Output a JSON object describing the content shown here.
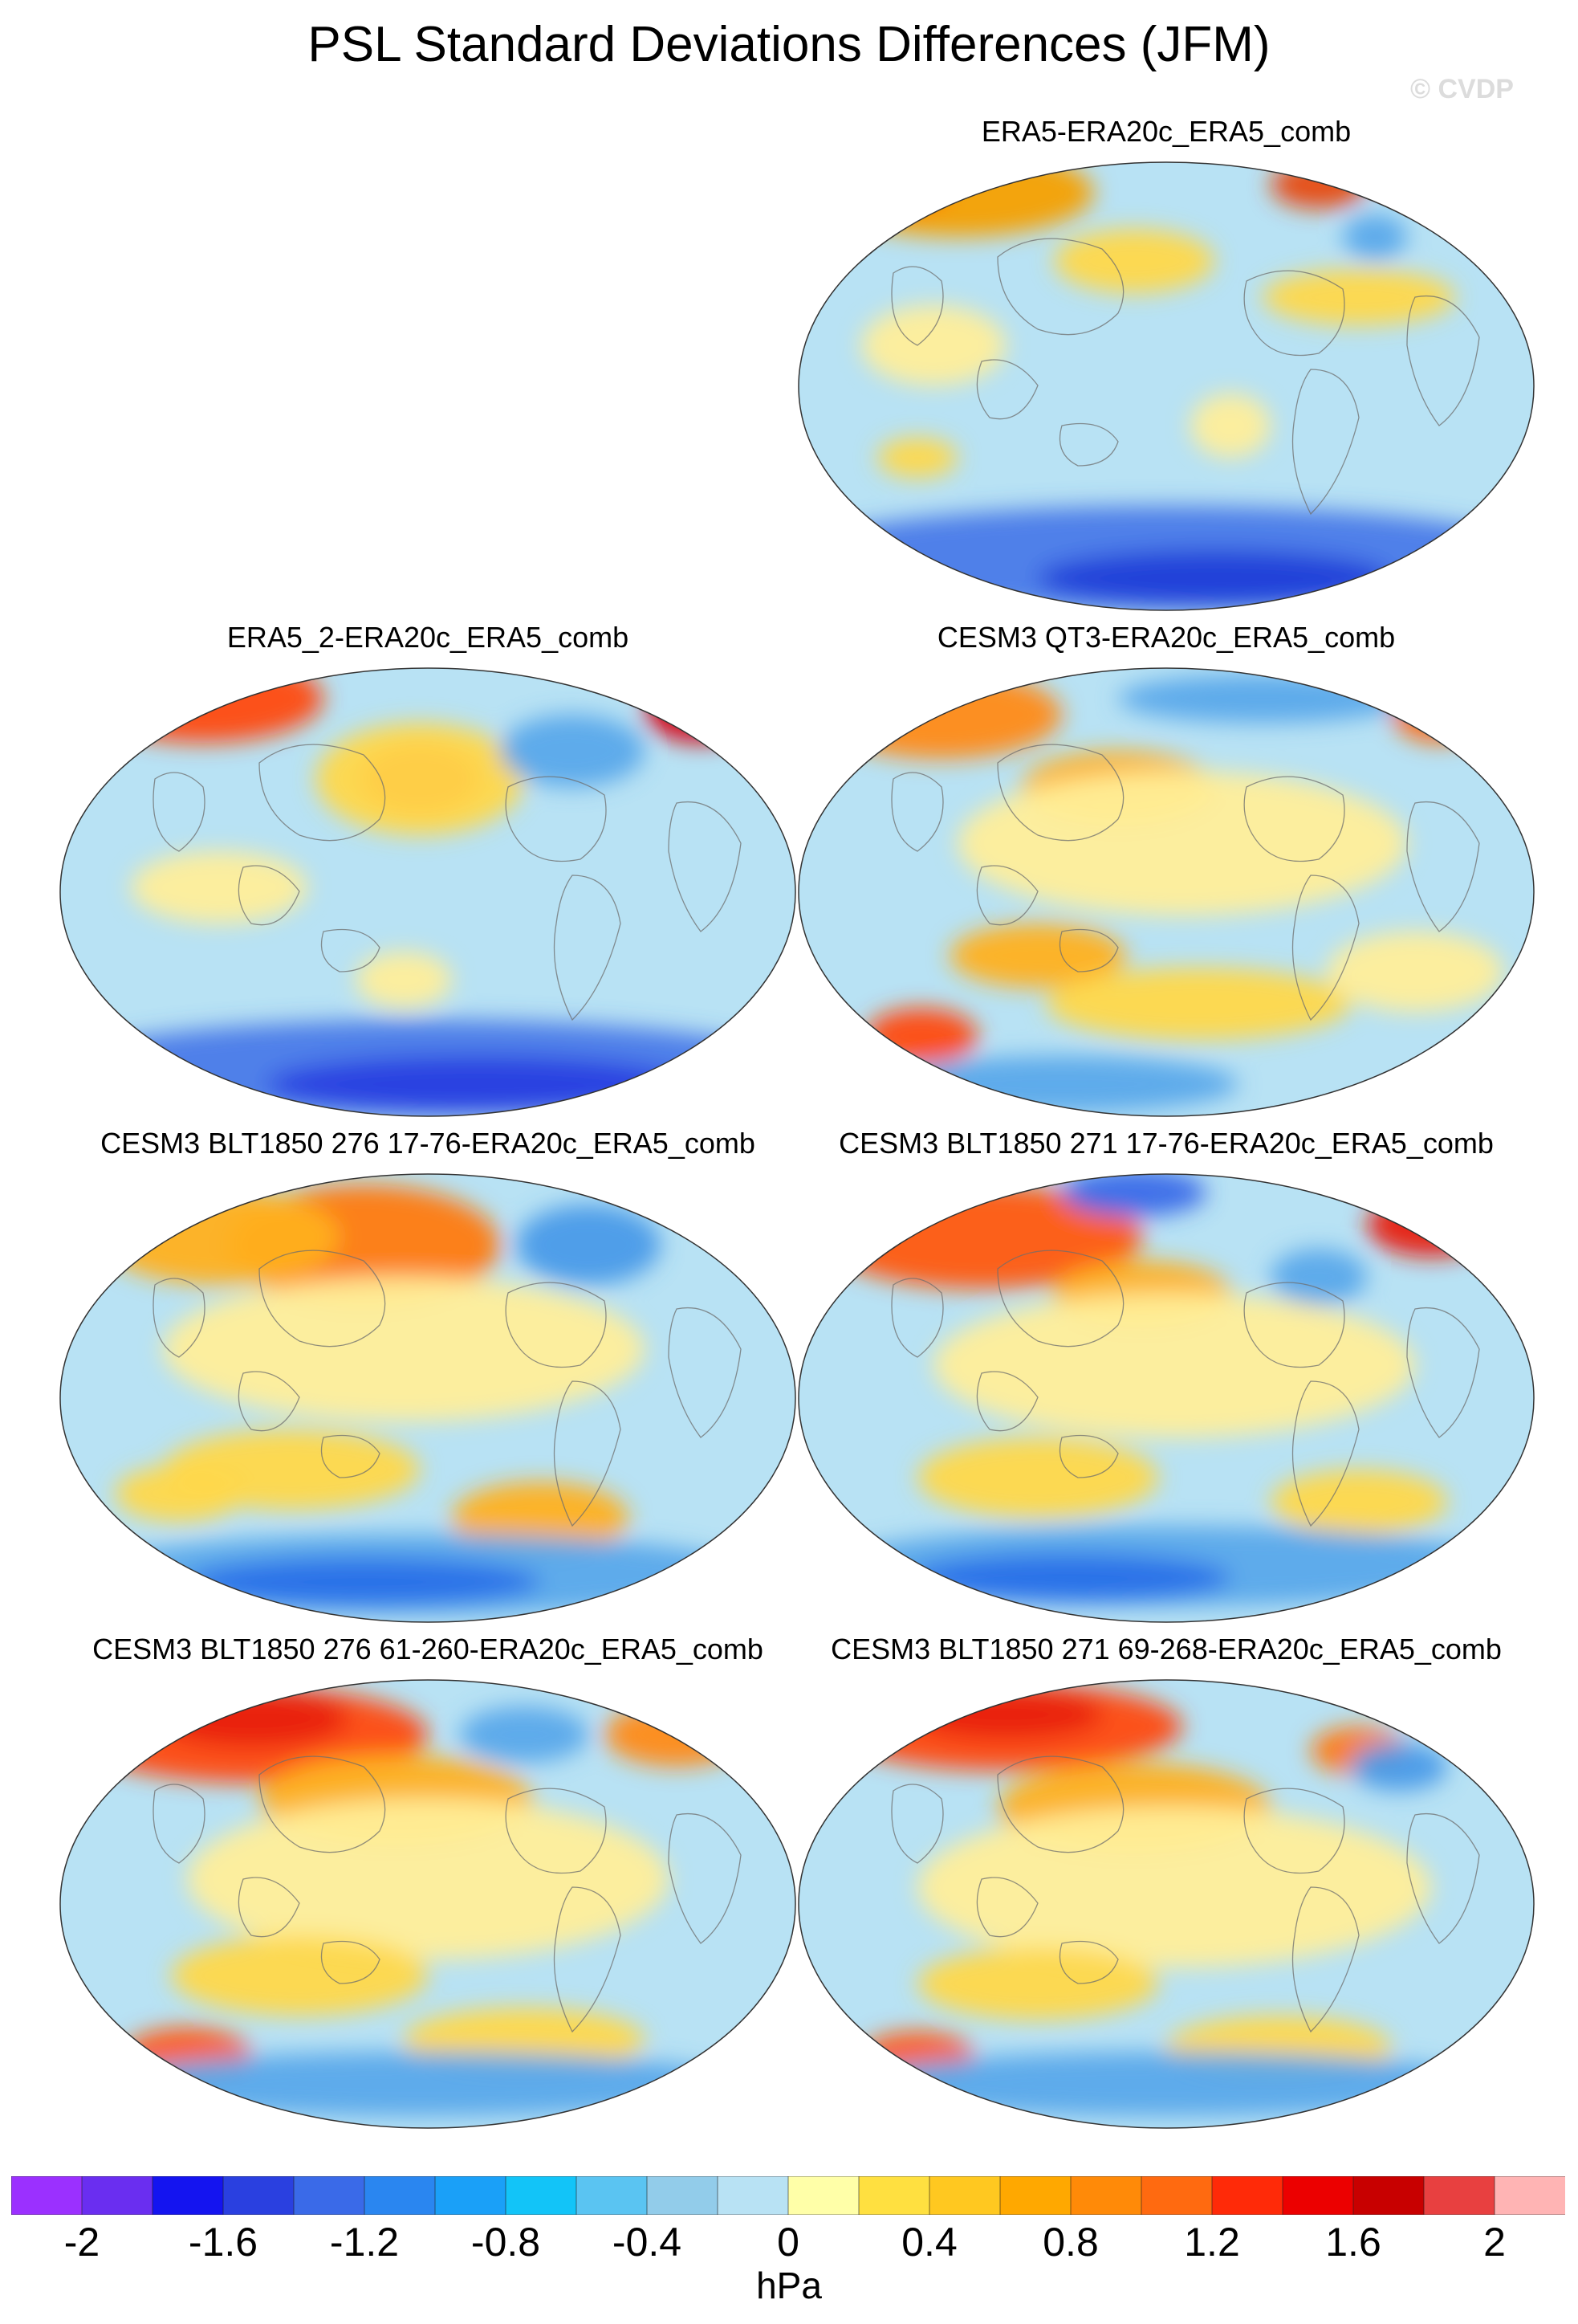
{
  "title": "PSL Standard Deviations Differences (JFM)",
  "watermark": "© CVDP",
  "panels": [
    {
      "name": "ERA5-ERA20c_ERA5_comb",
      "blobs": [
        [
          "#f5a000",
          200,
          40,
          170,
          55
        ],
        [
          "#ff7a10",
          130,
          35,
          60,
          30
        ],
        [
          "#e84a10",
          650,
          30,
          60,
          30
        ],
        [
          "#ffd84a",
          420,
          125,
          100,
          40
        ],
        [
          "#ffd84a",
          700,
          170,
          120,
          35
        ],
        [
          "#5aa8ea",
          720,
          95,
          40,
          28
        ],
        [
          "#ffee99",
          540,
          330,
          50,
          40
        ],
        [
          "#ffee99",
          170,
          230,
          90,
          50
        ],
        [
          "#4a7ae8",
          460,
          495,
          480,
          65
        ],
        [
          "#2040d8",
          520,
          520,
          220,
          35
        ],
        [
          "#ffd84a",
          150,
          370,
          50,
          25
        ]
      ]
    },
    {
      "name": "ERA5_2-ERA20c_ERA5_comb",
      "blobs": [
        [
          "#ff4a10",
          180,
          40,
          150,
          55
        ],
        [
          "#d80010",
          800,
          55,
          70,
          40
        ],
        [
          "#ee1a10",
          450,
          140,
          75,
          45
        ],
        [
          "#ffd84a",
          450,
          140,
          130,
          70
        ],
        [
          "#5aa8ea",
          640,
          105,
          90,
          45
        ],
        [
          "#ffee99",
          200,
          275,
          110,
          45
        ],
        [
          "#ffee99",
          430,
          390,
          60,
          35
        ],
        [
          "#4a7ae8",
          460,
          500,
          470,
          60
        ],
        [
          "#2a40e0",
          520,
          520,
          260,
          35
        ]
      ]
    },
    {
      "name": "CESM3 QT3-ERA20c_ERA5_comb",
      "blobs": [
        [
          "#ff8a18",
          180,
          60,
          150,
          55
        ],
        [
          "#ff6a10",
          800,
          55,
          60,
          40
        ],
        [
          "#ffb020",
          400,
          150,
          120,
          45
        ],
        [
          "#ffee99",
          480,
          220,
          280,
          90
        ],
        [
          "#ffb020",
          300,
          360,
          110,
          40
        ],
        [
          "#ff4a10",
          155,
          460,
          70,
          35
        ],
        [
          "#ffd84a",
          500,
          420,
          190,
          45
        ],
        [
          "#5aa8ea",
          580,
          40,
          180,
          30
        ],
        [
          "#5aa8ea",
          330,
          520,
          220,
          35
        ],
        [
          "#ffee99",
          770,
          380,
          110,
          50
        ]
      ]
    },
    {
      "name": "CESM3 BLT1850 276 17-76-ERA20c_ERA5_comb",
      "blobs": [
        [
          "#ff7a10",
          380,
          90,
          170,
          75
        ],
        [
          "#ffb020",
          200,
          80,
          150,
          60
        ],
        [
          "#ffee99",
          430,
          220,
          300,
          90
        ],
        [
          "#4a9ae8",
          660,
          90,
          90,
          50
        ],
        [
          "#ffd84a",
          290,
          370,
          160,
          50
        ],
        [
          "#ffb020",
          600,
          430,
          110,
          45
        ],
        [
          "#5aa8ea",
          450,
          500,
          420,
          50
        ],
        [
          "#2a70e8",
          380,
          510,
          220,
          30
        ],
        [
          "#ffd84a",
          150,
          400,
          80,
          35
        ]
      ]
    },
    {
      "name": "CESM3 BLT1850 271 17-76-ERA20c_ERA5_comb",
      "blobs": [
        [
          "#ff5a10",
          230,
          80,
          200,
          65
        ],
        [
          "#e82010",
          790,
          65,
          80,
          40
        ],
        [
          "#3a6ae8",
          420,
          25,
          90,
          30
        ],
        [
          "#ffb020",
          430,
          150,
          110,
          40
        ],
        [
          "#ffee99",
          470,
          240,
          300,
          90
        ],
        [
          "#5aa8ea",
          650,
          130,
          60,
          35
        ],
        [
          "#ffd84a",
          300,
          380,
          150,
          50
        ],
        [
          "#ffd84a",
          700,
          410,
          110,
          40
        ],
        [
          "#5aa8ea",
          460,
          490,
          420,
          50
        ],
        [
          "#2a70e8",
          340,
          505,
          200,
          30
        ]
      ]
    },
    {
      "name": "CESM3 BLT1850 276 61-260-ERA20c_ERA5_comb",
      "blobs": [
        [
          "#ff4a10",
          240,
          70,
          220,
          60
        ],
        [
          "#e82010",
          240,
          50,
          120,
          35
        ],
        [
          "#ff8a18",
          770,
          70,
          90,
          40
        ],
        [
          "#ffb020",
          420,
          150,
          170,
          55
        ],
        [
          "#ffee99",
          460,
          250,
          300,
          100
        ],
        [
          "#5aa8ea",
          580,
          70,
          80,
          35
        ],
        [
          "#ffd84a",
          300,
          370,
          160,
          50
        ],
        [
          "#ff5a10",
          160,
          470,
          80,
          35
        ],
        [
          "#ffd84a",
          580,
          450,
          150,
          40
        ],
        [
          "#5aa8ea",
          450,
          505,
          400,
          40
        ]
      ]
    },
    {
      "name": "CESM3 BLT1850 271 69-268-ERA20c_ERA5_comb",
      "blobs": [
        [
          "#ff4a10",
          260,
          60,
          220,
          55
        ],
        [
          "#e82010",
          260,
          45,
          120,
          30
        ],
        [
          "#ffb020",
          420,
          160,
          170,
          55
        ],
        [
          "#ff7a10",
          700,
          90,
          60,
          30
        ],
        [
          "#4a9ae8",
          750,
          110,
          60,
          30
        ],
        [
          "#ffee99",
          470,
          260,
          320,
          100
        ],
        [
          "#ffd84a",
          300,
          380,
          150,
          45
        ],
        [
          "#ff5a10",
          150,
          470,
          70,
          30
        ],
        [
          "#ffd84a",
          600,
          460,
          140,
          40
        ],
        [
          "#5aa8ea",
          460,
          505,
          400,
          40
        ]
      ]
    }
  ],
  "colorbar": {
    "colors": [
      "#9b30ff",
      "#6a2ef0",
      "#1414f0",
      "#2a40e0",
      "#3a6ae8",
      "#2a86f0",
      "#1aa0f8",
      "#12c4f8",
      "#5ac4f2",
      "#92ccea",
      "#b8e2f4",
      "#ffffa8",
      "#ffe040",
      "#ffc820",
      "#ffa800",
      "#ff8a08",
      "#ff6a10",
      "#ff2a08",
      "#ec0000",
      "#c80000",
      "#e84040",
      "#ffb4b4"
    ],
    "tick_labels": [
      "-2",
      "-1.6",
      "-1.2",
      "-0.8",
      "-0.4",
      "0",
      "0.4",
      "0.8",
      "1.2",
      "1.6",
      "2"
    ],
    "units": "hPa"
  }
}
